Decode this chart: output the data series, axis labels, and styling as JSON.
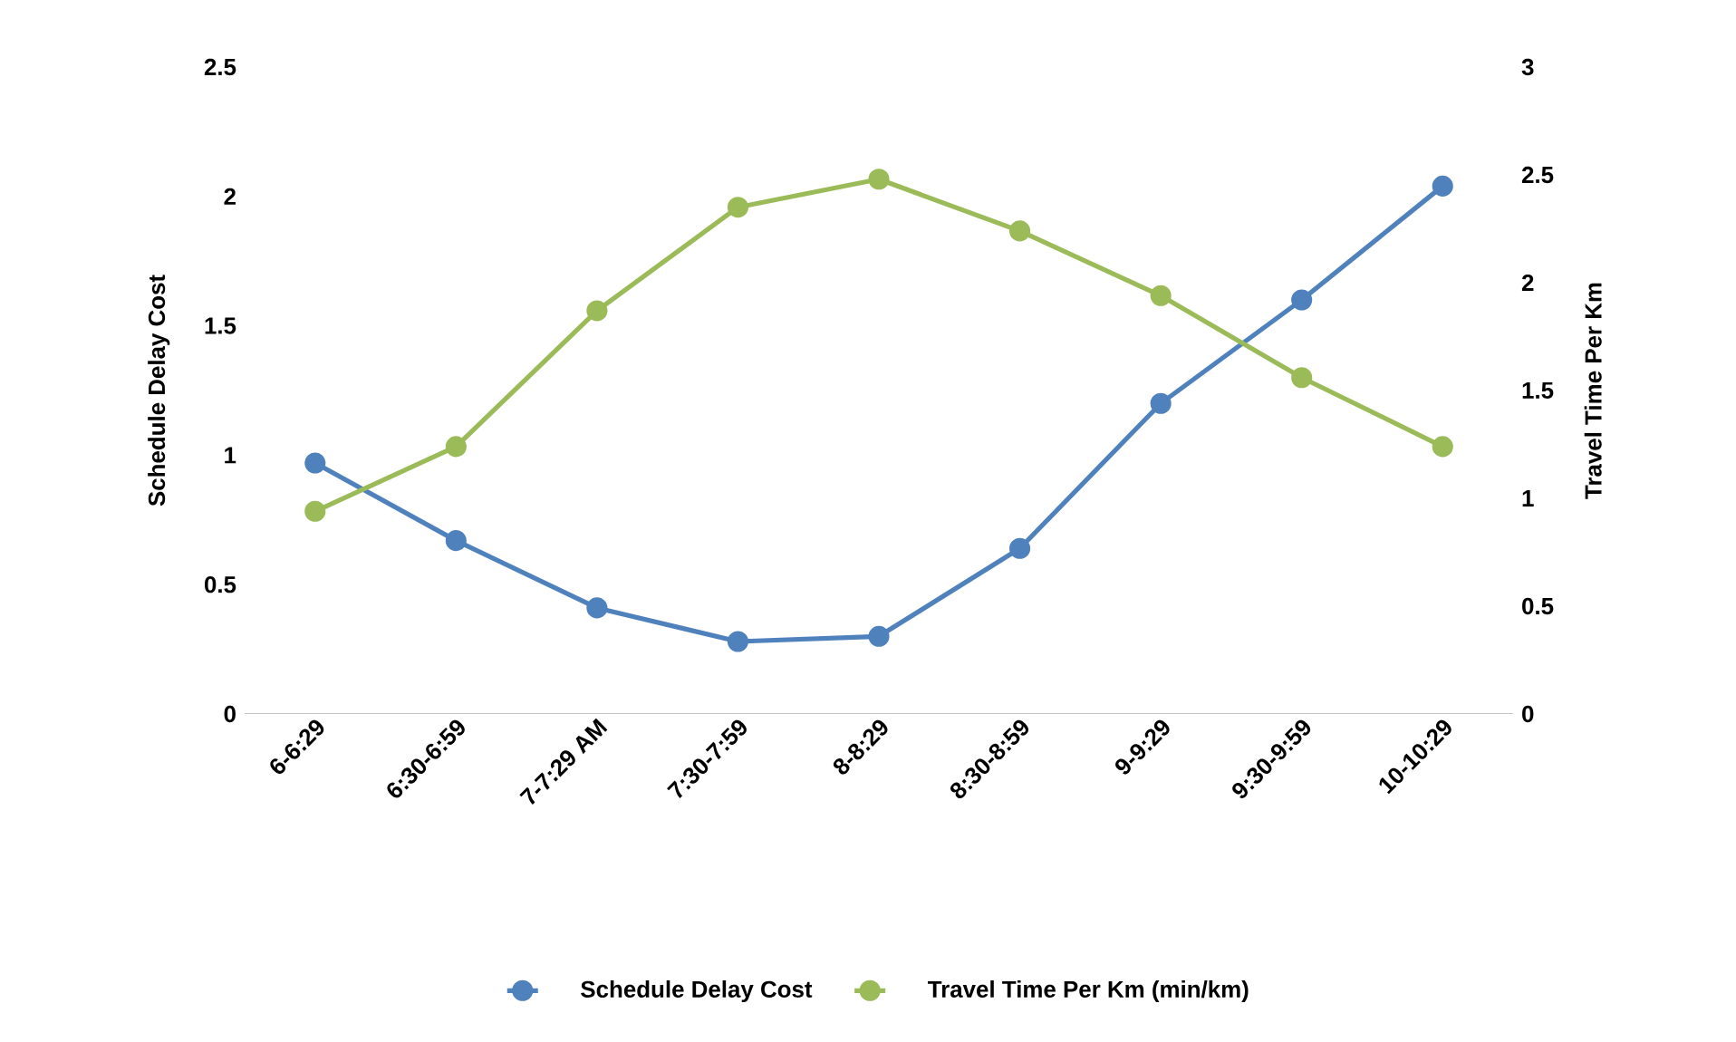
{
  "chart_data": {
    "type": "line",
    "categories": [
      "6-6:29",
      "6:30-6:59",
      "7-7:29 AM",
      "7:30-7:59",
      "8-8:29",
      "8:30-8:59",
      "9-9:29",
      "9:30-9:59",
      "10-10:29"
    ],
    "series": [
      {
        "name": "Schedule Delay Cost",
        "color": "#4f81bd",
        "axis": "y",
        "values": [
          0.97,
          0.67,
          0.41,
          0.28,
          0.3,
          0.64,
          1.2,
          1.6,
          2.04
        ]
      },
      {
        "name": "Travel Time Per Km (min/km)",
        "color": "#9bbb59",
        "axis": "y2",
        "values": [
          0.94,
          1.24,
          1.87,
          2.35,
          2.48,
          2.24,
          1.94,
          1.56,
          1.24
        ]
      }
    ],
    "ylabel": "Schedule Delay Cost",
    "y2label": "Travel Time Per Km",
    "ylim": [
      0,
      2.5
    ],
    "yticks": [
      0,
      0.5,
      1,
      1.5,
      2,
      2.5
    ],
    "y2lim": [
      0,
      3
    ],
    "y2ticks": [
      0,
      0.5,
      1,
      1.5,
      2,
      2.5,
      3
    ],
    "legend": "bottom",
    "marker": "circle",
    "line_style": "solid"
  }
}
